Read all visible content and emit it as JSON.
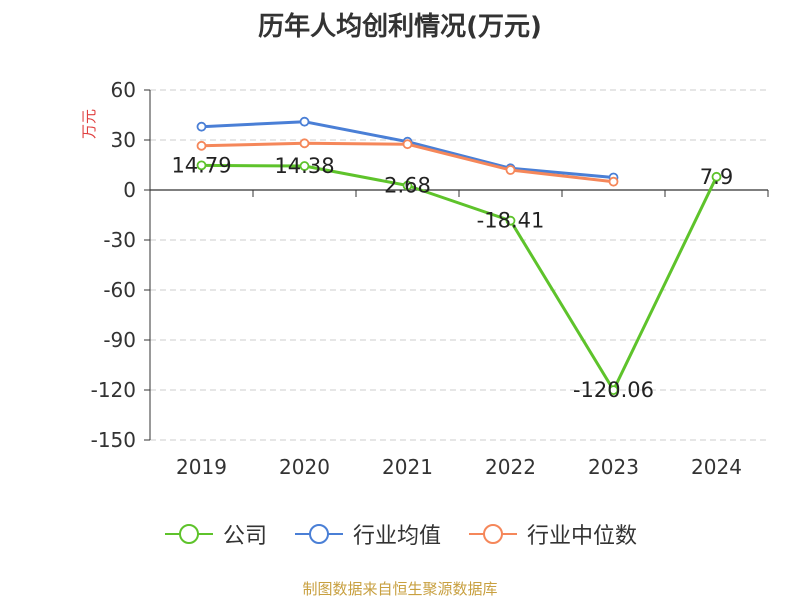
{
  "chart_data": {
    "type": "line",
    "title": "历年人均创利情况(万元)",
    "ylabel": "万元",
    "categories": [
      "2019",
      "2020",
      "2021",
      "2022",
      "2023",
      "2024"
    ],
    "ylim": [
      -150,
      60
    ],
    "yticks": [
      60,
      30,
      0,
      -30,
      -60,
      -90,
      -120,
      -150
    ],
    "grid": true,
    "legend_position": "bottom",
    "series": [
      {
        "name": "公司",
        "color": "#5ec32b",
        "values": [
          14.79,
          14.38,
          2.68,
          -18.41,
          -120.06,
          7.9
        ],
        "labels": [
          "14.79",
          "14.38",
          "2.68",
          "-18.41",
          "-120.06",
          "7.9"
        ]
      },
      {
        "name": "行业均值",
        "color": "#4a7fd6",
        "values": [
          38,
          41,
          29,
          13,
          7.5,
          null
        ]
      },
      {
        "name": "行业中位数",
        "color": "#f5875a",
        "values": [
          26.5,
          28,
          27.5,
          12,
          5,
          null
        ]
      }
    ]
  },
  "source": "制图数据来自恒生聚源数据库"
}
